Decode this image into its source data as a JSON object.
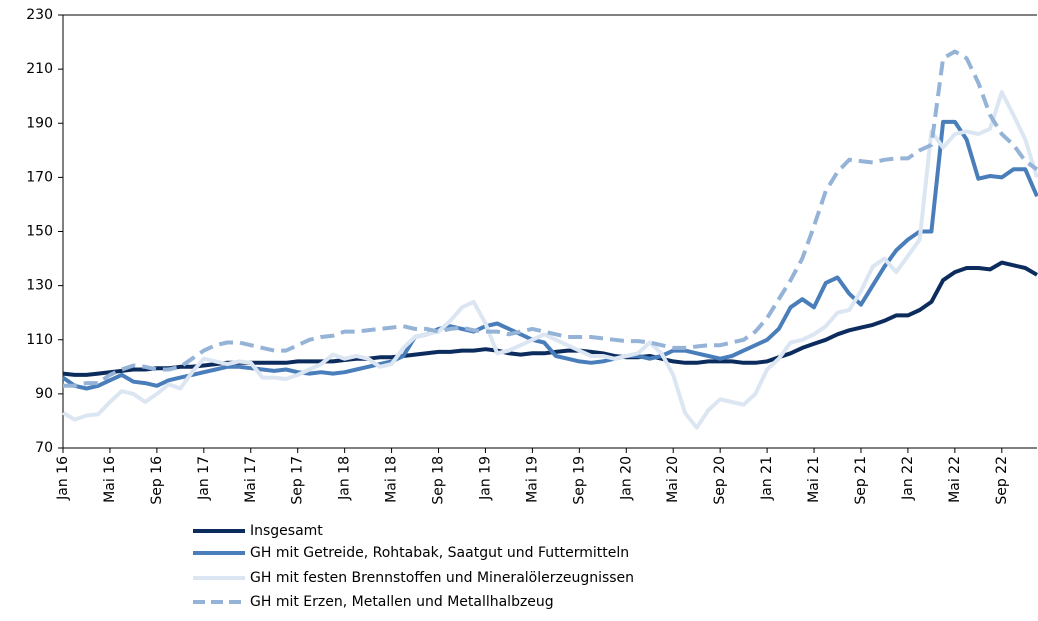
{
  "chart_data": {
    "type": "line",
    "categories": [
      "Jan 16",
      null,
      null,
      null,
      "Mai 16",
      null,
      null,
      null,
      "Sep 16",
      null,
      null,
      null,
      "Jan 17",
      null,
      null,
      null,
      "Mai 17",
      null,
      null,
      null,
      "Sep 17",
      null,
      null,
      null,
      "Jan 18",
      null,
      null,
      null,
      "Mai 18",
      null,
      null,
      null,
      "Sep 18",
      null,
      null,
      null,
      "Jan 19",
      null,
      null,
      null,
      "Mai 19",
      null,
      null,
      null,
      "Sep 19",
      null,
      null,
      null,
      "Jan 20",
      null,
      null,
      null,
      "Mai 20",
      null,
      null,
      null,
      "Sep 20",
      null,
      null,
      null,
      "Jan 21",
      null,
      null,
      null,
      "Mai 21",
      null,
      null,
      null,
      "Sep 21",
      null,
      null,
      null,
      "Jan 22",
      null,
      null,
      null,
      "Mai 22",
      null,
      null,
      null,
      "Sep 22",
      null,
      null,
      null
    ],
    "series": [
      {
        "name": "Insgesamt",
        "color": "#0d2c5e",
        "style": "solid",
        "values": [
          97.5,
          97,
          97,
          97.5,
          98,
          98.5,
          99,
          99,
          99.5,
          99.5,
          100,
          100,
          100.5,
          101,
          101.5,
          101.5,
          101.5,
          101.5,
          101.5,
          101.5,
          102,
          102,
          102,
          102,
          102.5,
          103,
          103,
          103.5,
          103.5,
          104,
          104.5,
          105,
          105.5,
          105.5,
          106,
          106,
          106.5,
          106,
          105,
          104.5,
          105,
          105,
          105.5,
          106,
          106,
          105.5,
          105,
          104,
          103.5,
          103.5,
          104,
          103,
          102,
          101.5,
          101.5,
          102,
          102,
          102,
          101.5,
          101.5,
          102,
          103.5,
          105,
          107,
          108.5,
          110,
          112,
          113.5,
          114.5,
          115.5,
          117,
          119,
          119,
          121,
          124,
          132,
          135,
          136.5,
          136.5,
          136,
          138.5,
          137.5,
          136.5,
          134
        ]
      },
      {
        "name": "GH mit Getreide, Rohtabak, Saatgut und Futtermitteln",
        "color": "#4a7ebb",
        "style": "solid",
        "values": [
          96,
          93,
          92,
          93,
          95,
          97,
          94.5,
          94,
          93,
          95,
          96,
          97,
          98,
          99,
          100,
          100,
          99.5,
          99,
          98.5,
          99,
          98,
          97.5,
          98,
          97.5,
          98,
          99,
          100,
          101,
          102,
          104,
          111,
          112,
          114,
          115,
          114,
          113,
          115,
          116,
          114,
          112,
          110,
          109,
          104,
          103,
          102,
          101.5,
          102,
          103,
          104,
          104,
          103,
          104,
          106,
          106,
          105,
          104,
          103,
          104,
          106,
          108,
          110,
          114,
          122,
          125,
          122,
          131,
          133,
          127,
          123,
          130,
          137,
          143,
          147,
          150,
          150,
          190.5,
          190.5,
          184,
          169.5,
          170.5,
          170,
          173,
          173,
          163
        ]
      },
      {
        "name": "GH mit festen Brennstoffen und Mineralölerzeugnissen",
        "color": "#dce6f2",
        "style": "solid",
        "values": [
          83,
          80.5,
          82,
          82.5,
          87,
          91,
          90,
          87,
          90,
          93.5,
          92,
          98,
          103,
          102,
          101,
          102,
          101.5,
          96,
          96,
          95.5,
          97,
          99,
          101,
          104.5,
          103,
          104,
          103,
          100,
          101,
          107,
          111,
          112,
          113,
          117,
          122,
          124,
          116,
          105,
          106,
          108,
          110,
          112,
          110,
          108,
          106,
          104,
          104,
          103,
          104,
          105,
          109,
          105,
          97,
          83,
          77.5,
          84,
          88,
          87,
          86,
          90,
          99,
          103,
          109,
          110,
          112,
          115,
          120,
          121,
          128,
          137,
          140,
          135,
          141,
          147,
          187,
          181,
          186,
          187,
          186,
          188,
          201.5,
          193,
          184,
          170
        ]
      },
      {
        "name": "GH mit Erzen, Metallen und Metallhalbzeug",
        "color": "#95b3d7",
        "style": "dashed",
        "values": [
          93,
          93,
          94,
          94,
          97,
          99,
          100.5,
          100,
          99,
          99,
          100,
          103,
          106,
          108,
          109,
          109,
          108,
          107,
          106,
          106,
          108,
          110,
          111,
          111.5,
          113,
          113,
          113.5,
          114,
          114.5,
          115,
          114,
          114,
          113,
          114,
          114.5,
          113.5,
          113,
          113,
          112,
          113,
          114,
          113,
          112,
          111,
          111,
          111,
          110.5,
          110,
          109.5,
          109.5,
          109,
          108,
          107,
          107,
          107.5,
          108,
          108,
          109,
          110,
          113,
          118,
          125,
          132,
          140,
          152,
          165,
          172,
          176.5,
          176,
          175.5,
          176.5,
          177,
          177,
          180,
          182,
          214,
          216.5,
          214,
          205,
          193,
          186,
          182,
          176,
          173
        ]
      }
    ],
    "ylim": [
      70,
      230
    ],
    "yticks": [
      70,
      90,
      110,
      130,
      150,
      170,
      190,
      210,
      230
    ],
    "grid": false
  }
}
